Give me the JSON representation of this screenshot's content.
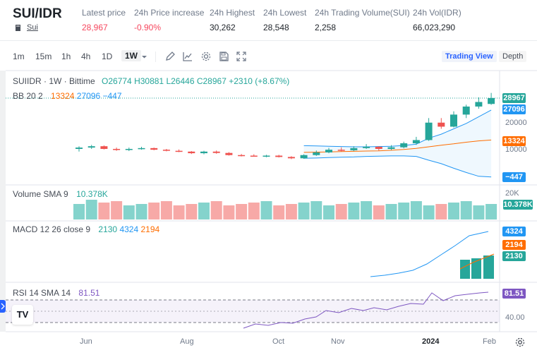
{
  "header": {
    "pair": "SUI/IDR",
    "coin_link": "Sui",
    "stats": [
      {
        "label": "Latest price",
        "value": "28,967",
        "color": "#f6465d"
      },
      {
        "label": "24h Price increase",
        "value": "-0.90%",
        "color": "#f6465d"
      },
      {
        "label": "24h Highest",
        "value": "30,262",
        "color": "#1e2329"
      },
      {
        "label": "24h Lowest",
        "value": "28,548",
        "color": "#1e2329"
      },
      {
        "label": "24h Trading Volume(SUI)",
        "value": "2,258",
        "color": "#1e2329"
      },
      {
        "label": "24h Vol(IDR)",
        "value": "66,023,290",
        "color": "#1e2329"
      }
    ]
  },
  "toolbar": {
    "intervals": [
      "1m",
      "15m",
      "1h",
      "4h",
      "1D",
      "1W"
    ],
    "active_interval": "1W",
    "trading_view": "Trading View",
    "depth": "Depth"
  },
  "chart": {
    "symbol_line": {
      "symbol": "SUIIDR · 1W · Bittime",
      "open": "O26774",
      "high": "H30881",
      "low": "L26446",
      "close": "C28967",
      "change": "+2310 (+8.67%)"
    },
    "bb": {
      "label": "BB 20 2",
      "v1": "13324",
      "v2": "27096",
      "v3": "−447"
    },
    "volume": {
      "label": "Volume SMA 9",
      "value": "10.378K"
    },
    "macd": {
      "label": "MACD 12 26 close 9",
      "v1": "2130",
      "v2": "4324",
      "v3": "2194"
    },
    "rsi": {
      "label": "RSI 14 SMA 14",
      "value": "81.51"
    },
    "price_axis": {
      "tags": [
        "28967",
        "27096",
        "13324",
        "−447"
      ],
      "ticks": [
        "20000",
        "10000"
      ],
      "volume_tick": "20K",
      "volume_tag": "10.378K",
      "macd_tags": [
        "4324",
        "2194",
        "2130"
      ],
      "rsi_tag": "81.51",
      "rsi_tick": "40.00"
    },
    "time_axis": [
      "Jun",
      "Aug",
      "Oct",
      "Nov",
      "2024",
      "Feb"
    ],
    "colors": {
      "up": "#26a69a",
      "down": "#ef5350",
      "bb_upper": "#2196f3",
      "bb_basis": "#ff6d00",
      "rsi": "#7e57c2",
      "macd_line": "#2196f3",
      "signal": "#ff6d00"
    }
  },
  "chart_data": {
    "type": "candlestick",
    "note": "weekly OHLC read approximately off the price axis (IDR)",
    "candles": [
      {
        "o": 10000,
        "h": 11000,
        "l": 9000,
        "c": 10500
      },
      {
        "o": 10500,
        "h": 11500,
        "l": 10000,
        "c": 11000
      },
      {
        "o": 11000,
        "h": 11300,
        "l": 9800,
        "c": 10000
      },
      {
        "o": 10000,
        "h": 10500,
        "l": 9300,
        "c": 9600
      },
      {
        "o": 9600,
        "h": 10500,
        "l": 9200,
        "c": 10000
      },
      {
        "o": 10000,
        "h": 10800,
        "l": 9700,
        "c": 10300
      },
      {
        "o": 10300,
        "h": 10500,
        "l": 9500,
        "c": 9700
      },
      {
        "o": 9700,
        "h": 10000,
        "l": 9100,
        "c": 9300
      },
      {
        "o": 9300,
        "h": 9800,
        "l": 8800,
        "c": 9000
      },
      {
        "o": 9000,
        "h": 9200,
        "l": 8100,
        "c": 8400
      },
      {
        "o": 8400,
        "h": 9300,
        "l": 8000,
        "c": 9000
      },
      {
        "o": 9000,
        "h": 9400,
        "l": 8200,
        "c": 8500
      },
      {
        "o": 8500,
        "h": 8800,
        "l": 7500,
        "c": 7700
      },
      {
        "o": 7700,
        "h": 8100,
        "l": 7200,
        "c": 7500
      },
      {
        "o": 7500,
        "h": 8000,
        "l": 7100,
        "c": 7300
      },
      {
        "o": 7300,
        "h": 7800,
        "l": 6900,
        "c": 7500
      },
      {
        "o": 7500,
        "h": 7800,
        "l": 6800,
        "c": 7000
      },
      {
        "o": 7000,
        "h": 7300,
        "l": 6200,
        "c": 6500
      },
      {
        "o": 6500,
        "h": 8000,
        "l": 6300,
        "c": 7700
      },
      {
        "o": 7700,
        "h": 9400,
        "l": 7400,
        "c": 8700
      },
      {
        "o": 8700,
        "h": 10400,
        "l": 8400,
        "c": 9700
      },
      {
        "o": 9700,
        "h": 10600,
        "l": 9000,
        "c": 9500
      },
      {
        "o": 9500,
        "h": 11000,
        "l": 9200,
        "c": 10300
      },
      {
        "o": 10300,
        "h": 11800,
        "l": 10000,
        "c": 10800
      },
      {
        "o": 10800,
        "h": 11000,
        "l": 9400,
        "c": 10000
      },
      {
        "o": 10000,
        "h": 11400,
        "l": 9600,
        "c": 10600
      },
      {
        "o": 10600,
        "h": 12700,
        "l": 10200,
        "c": 12100
      },
      {
        "o": 12100,
        "h": 14500,
        "l": 11500,
        "c": 13300
      },
      {
        "o": 13300,
        "h": 21500,
        "l": 13000,
        "c": 19800
      },
      {
        "o": 19800,
        "h": 21500,
        "l": 17500,
        "c": 18300
      },
      {
        "o": 18300,
        "h": 24000,
        "l": 18000,
        "c": 22800
      },
      {
        "o": 22800,
        "h": 26500,
        "l": 21500,
        "c": 25800
      },
      {
        "o": 25800,
        "h": 29200,
        "l": 25000,
        "c": 27500
      },
      {
        "o": 26774,
        "h": 30881,
        "l": 26446,
        "c": 28967
      }
    ],
    "volume_sma9": 10378,
    "macd": {
      "macd": 4324,
      "signal": 2194,
      "histogram": 2130
    },
    "rsi": 81.51,
    "bb": {
      "upper": 27096,
      "basis": 13324,
      "lower": -447
    },
    "ylim": [
      -3000,
      32000
    ]
  }
}
